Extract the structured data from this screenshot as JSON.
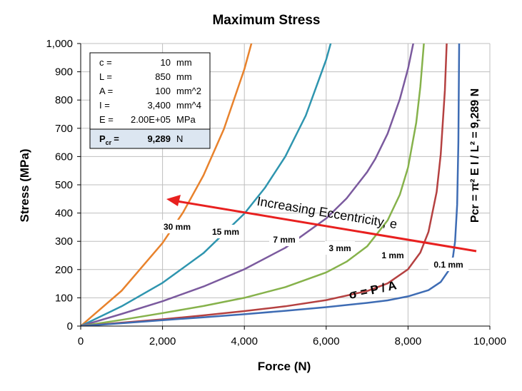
{
  "chart_data": {
    "type": "line",
    "title": "Maximum Stress",
    "xlabel": "Force (N)",
    "ylabel": "Stress (MPa)",
    "xlim": [
      0,
      10000
    ],
    "ylim": [
      0,
      1000
    ],
    "x_ticks": [
      0,
      2000,
      4000,
      6000,
      8000,
      10000
    ],
    "x_tick_labels": [
      "0",
      "2,000",
      "4,000",
      "6,000",
      "8,000",
      "10,000"
    ],
    "y_ticks": [
      0,
      100,
      200,
      300,
      400,
      500,
      600,
      700,
      800,
      900,
      1000
    ],
    "y_tick_labels": [
      "0",
      "100",
      "200",
      "300",
      "400",
      "500",
      "600",
      "700",
      "800",
      "900",
      "1,000"
    ],
    "grid": true,
    "series": [
      {
        "label": "30 mm",
        "color": "#E8822C",
        "points": [
          [
            0,
            0
          ],
          [
            1000,
            125
          ],
          [
            2000,
            294
          ],
          [
            2500,
            402
          ],
          [
            3000,
            533
          ],
          [
            3500,
            697
          ],
          [
            4000,
            909
          ],
          [
            4250,
            1041
          ]
        ]
      },
      {
        "label": "15 mm",
        "color": "#2E95AF",
        "points": [
          [
            0,
            0
          ],
          [
            1000,
            70
          ],
          [
            2000,
            153
          ],
          [
            3000,
            258
          ],
          [
            4000,
            398
          ],
          [
            4500,
            489
          ],
          [
            5000,
            600
          ],
          [
            5500,
            745
          ],
          [
            6000,
            943
          ],
          [
            6250,
            1073
          ]
        ]
      },
      {
        "label": "7 mm",
        "color": "#7B5A9E",
        "points": [
          [
            0,
            0
          ],
          [
            1000,
            43
          ],
          [
            2000,
            88
          ],
          [
            3000,
            140
          ],
          [
            4000,
            201
          ],
          [
            5000,
            277
          ],
          [
            6000,
            381
          ],
          [
            6500,
            452
          ],
          [
            7000,
            545
          ],
          [
            7200,
            592
          ],
          [
            7500,
            681
          ],
          [
            7800,
            803
          ],
          [
            8000,
            911
          ],
          [
            8200,
            1051
          ]
        ]
      },
      {
        "label": "3 mm",
        "color": "#86B24B",
        "points": [
          [
            0,
            0
          ],
          [
            1000,
            22
          ],
          [
            2000,
            46
          ],
          [
            3000,
            71
          ],
          [
            4000,
            100
          ],
          [
            5000,
            138
          ],
          [
            6000,
            190
          ],
          [
            6500,
            228
          ],
          [
            7000,
            282
          ],
          [
            7500,
            374
          ],
          [
            7800,
            465
          ],
          [
            8000,
            561
          ],
          [
            8200,
            720
          ],
          [
            8300,
            846
          ],
          [
            8400,
            1022
          ]
        ]
      },
      {
        "label": "1 mm",
        "color": "#B54141",
        "points": [
          [
            0,
            0
          ],
          [
            1000,
            12
          ],
          [
            2000,
            24
          ],
          [
            3000,
            38
          ],
          [
            4000,
            53
          ],
          [
            5000,
            70
          ],
          [
            6000,
            92
          ],
          [
            7000,
            124
          ],
          [
            7500,
            151
          ],
          [
            8000,
            201
          ],
          [
            8300,
            260
          ],
          [
            8500,
            333
          ],
          [
            8700,
            475
          ],
          [
            8800,
            608
          ],
          [
            8900,
            834
          ],
          [
            8950,
            1017
          ]
        ]
      },
      {
        "label": "0.1 mm",
        "color": "#3E6CB4",
        "points": [
          [
            0,
            0
          ],
          [
            1000,
            10
          ],
          [
            2000,
            21
          ],
          [
            3000,
            31
          ],
          [
            4000,
            42
          ],
          [
            5000,
            54
          ],
          [
            6000,
            67
          ],
          [
            7000,
            82
          ],
          [
            7500,
            91
          ],
          [
            8000,
            105
          ],
          [
            8500,
            127
          ],
          [
            8800,
            156
          ],
          [
            9000,
            198
          ],
          [
            9100,
            246
          ],
          [
            9150,
            300
          ],
          [
            9200,
            430
          ],
          [
            9230,
            650
          ],
          [
            9250,
            1000
          ]
        ]
      }
    ],
    "annotations": {
      "arrow_label": "Increasing Eccentricity, e",
      "stress_formula": "σ = P / A",
      "pcr_formula": "Pcr = π² E I / L² = 9,289 N"
    }
  },
  "properties": [
    {
      "name": "c =",
      "value": "10",
      "unit": "mm"
    },
    {
      "name": "L =",
      "value": "850",
      "unit": "mm"
    },
    {
      "name": "A =",
      "value": "100",
      "unit": "mm^2"
    },
    {
      "name": "I =",
      "value": "3,400",
      "unit": "mm^4"
    },
    {
      "name": "E =",
      "value": "2.00E+05",
      "unit": "MPa"
    }
  ],
  "pcr_row": {
    "name_main": "P",
    "name_sub": "cr",
    "eq": "=",
    "value": "9,289",
    "unit": "N"
  },
  "colors": {
    "arrow": "#E8201F",
    "grid": "#BFBFBF",
    "table_highlight": "#DCE6F1"
  }
}
